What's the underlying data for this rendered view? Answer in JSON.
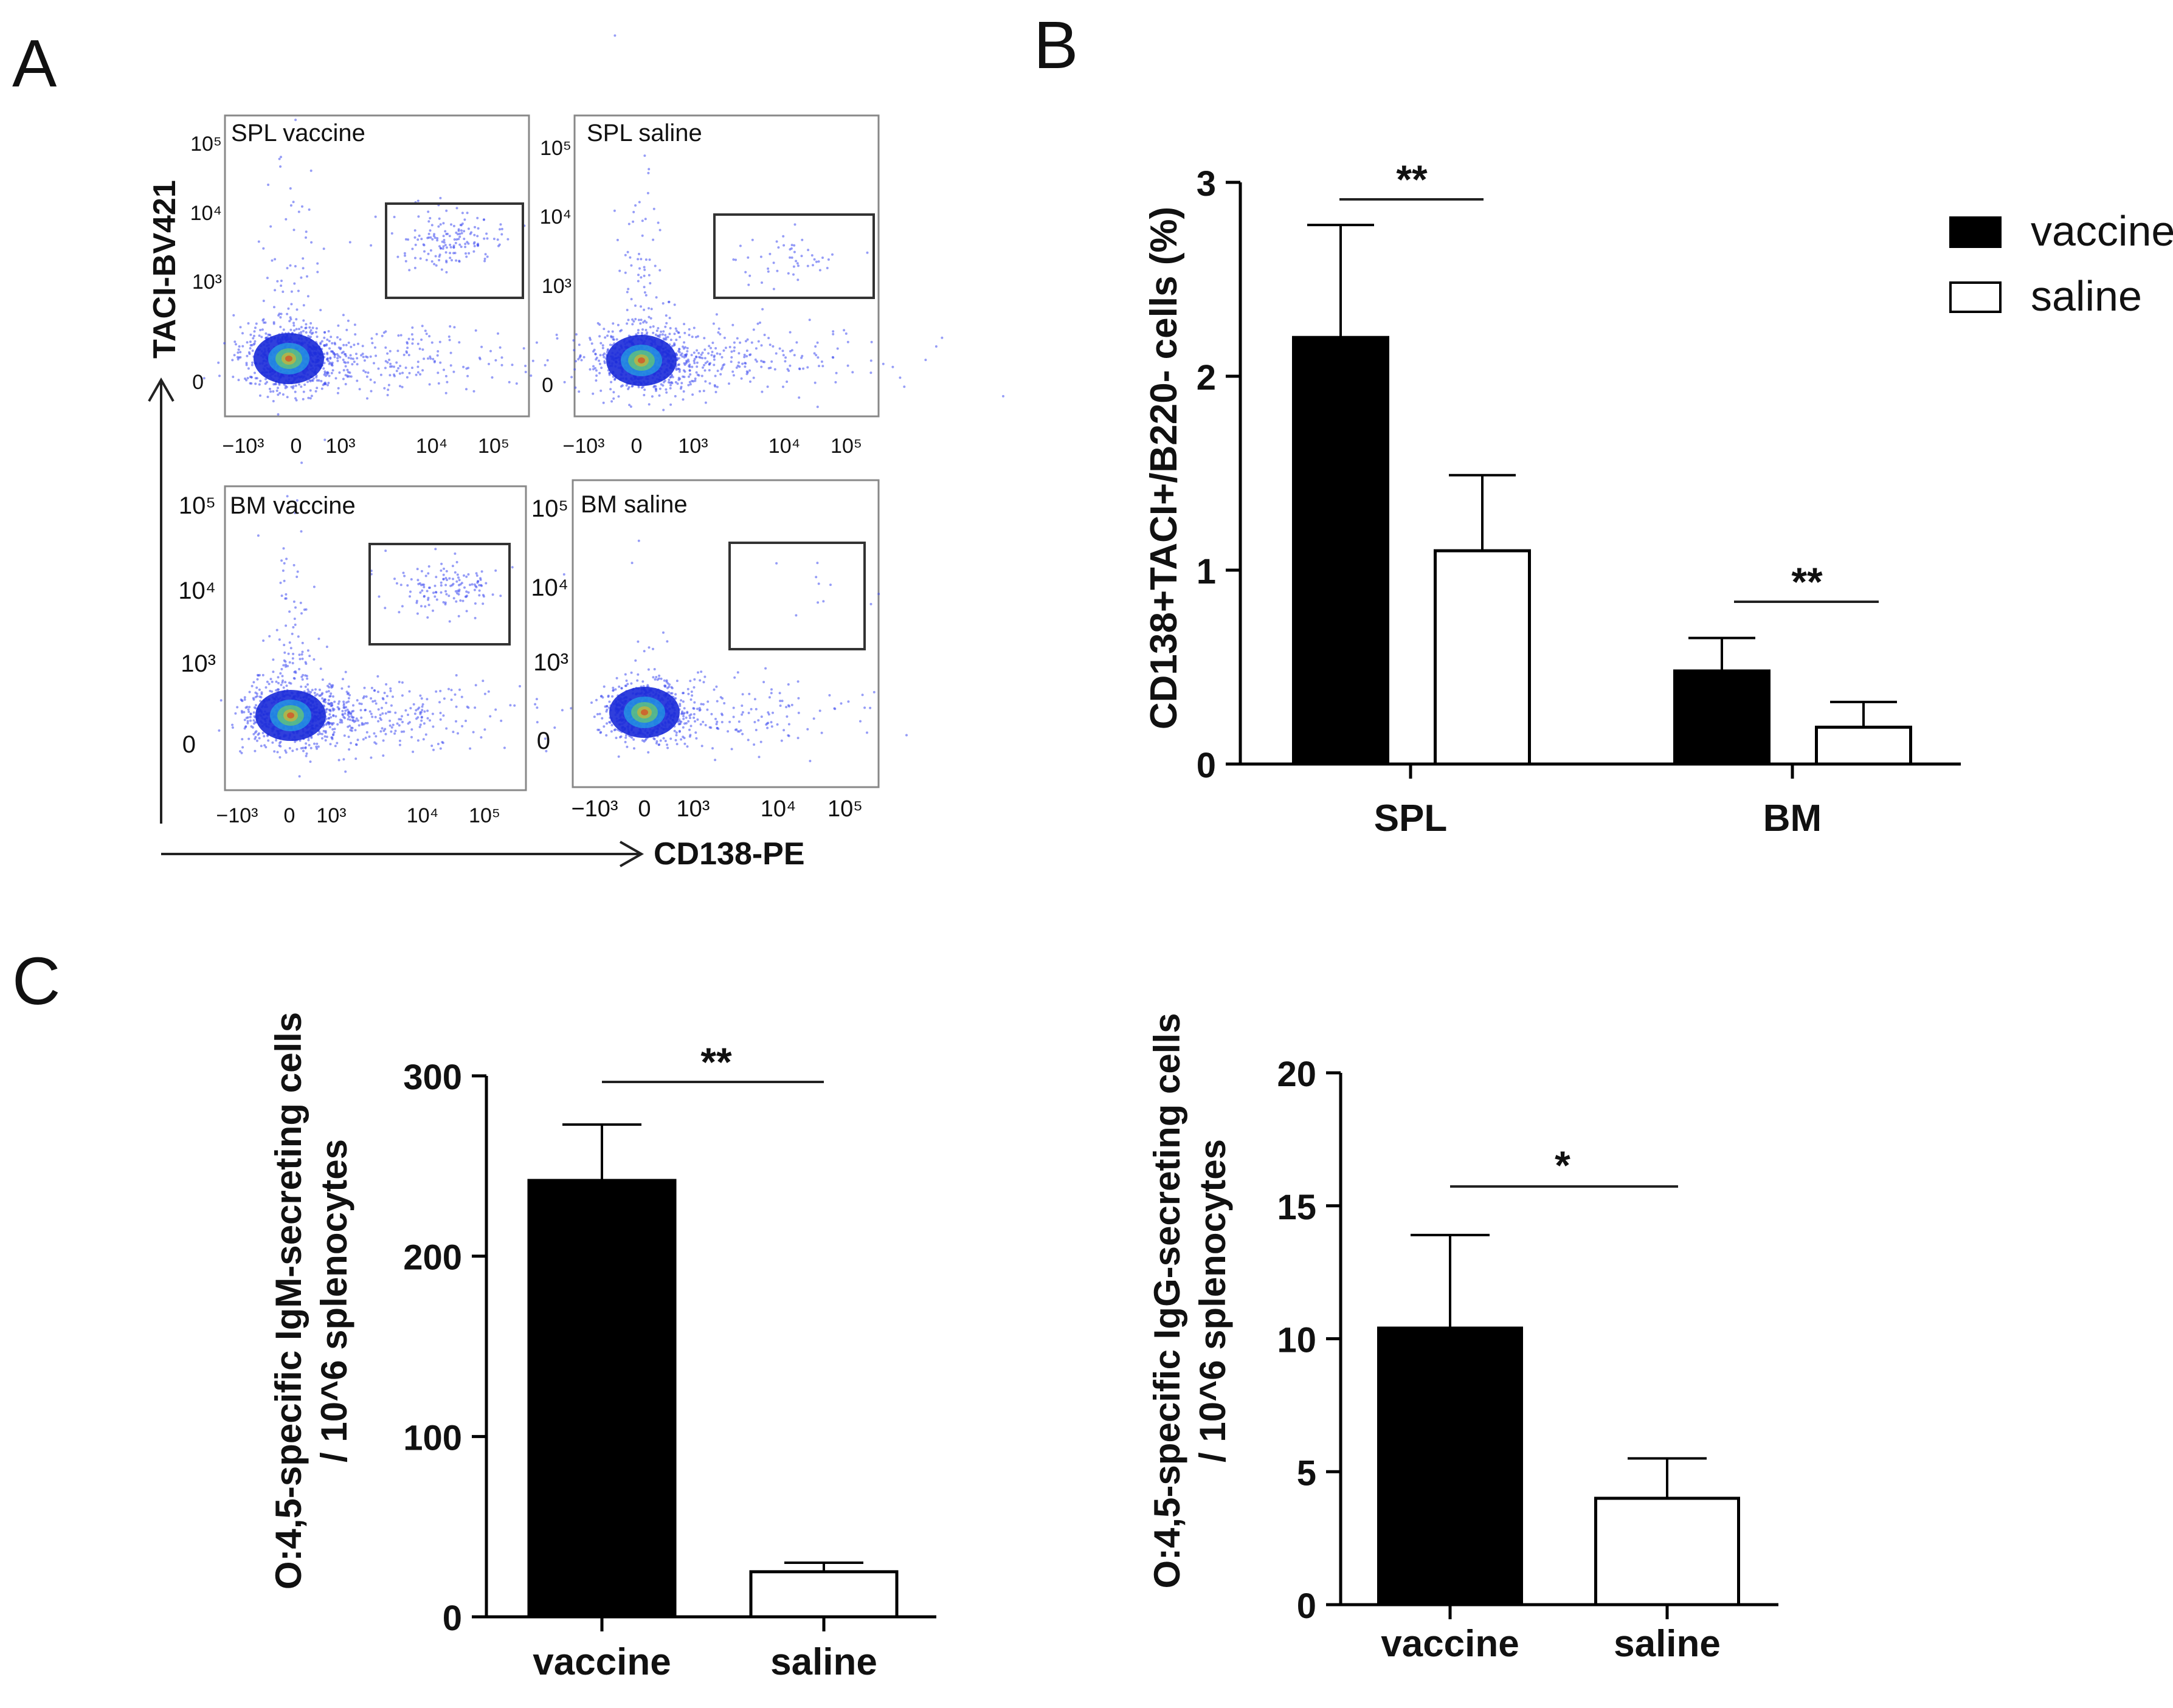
{
  "panels": {
    "a": "A",
    "b": "B",
    "c": "C"
  },
  "flow": {
    "y_axis_label": "TACI-BV421",
    "x_axis_label": "CD138-PE",
    "plots": [
      {
        "title": "SPL vaccine",
        "y_ticks": [
          "10⁵",
          "10⁴",
          "10³",
          "0"
        ],
        "x_ticks": [
          "−10³",
          "0",
          "10³",
          "10⁴",
          "10⁵"
        ]
      },
      {
        "title": "SPL saline",
        "y_ticks": [
          "10⁵",
          "10⁴",
          "10³",
          "0"
        ],
        "x_ticks": [
          "−10³",
          "0",
          "10³",
          "10⁴",
          "10⁵"
        ]
      },
      {
        "title": "BM vaccine",
        "y_ticks": [
          "10⁵",
          "10⁴",
          "10³",
          "0"
        ],
        "x_ticks": [
          "−10³",
          "0",
          "10³",
          "10⁴",
          "10⁵"
        ]
      },
      {
        "title": "BM saline",
        "y_ticks": [
          "10⁵",
          "10⁴",
          "10³",
          "0"
        ],
        "x_ticks": [
          "−10³",
          "0",
          "10³",
          "10⁴",
          "10⁵"
        ]
      }
    ]
  },
  "colors": {
    "vaccine": "#000000",
    "saline": "#ffffff",
    "dots": "#3f4df0"
  },
  "chart_data": [
    {
      "id": "B",
      "type": "bar",
      "categories": [
        "SPL",
        "BM"
      ],
      "series": [
        {
          "name": "vaccine",
          "values": [
            2.2,
            0.48
          ],
          "errors": [
            0.58,
            0.17
          ]
        },
        {
          "name": "saline",
          "values": [
            1.1,
            0.19
          ],
          "errors": [
            0.39,
            0.13
          ]
        }
      ],
      "ylabel": "CD138+TACI+/B220- cells (%)",
      "xlabel": "",
      "ylim": [
        0,
        3
      ],
      "yticks": [
        "0",
        "1",
        "2",
        "3"
      ],
      "significance": [
        "**",
        "**"
      ],
      "legend": {
        "position": "top-right",
        "entries": [
          "vaccine",
          "saline"
        ]
      }
    },
    {
      "id": "C-left",
      "type": "bar",
      "categories": [
        "vaccine",
        "saline"
      ],
      "values": [
        242,
        25
      ],
      "errors": [
        31,
        5
      ],
      "ylabel": [
        "O:4,5-specific IgM-secreting cells",
        "/ 10^6 splenocytes"
      ],
      "ylim": [
        0,
        300
      ],
      "yticks": [
        "0",
        "100",
        "200",
        "300"
      ],
      "significance": "**"
    },
    {
      "id": "C-right",
      "type": "bar",
      "categories": [
        "vaccine",
        "saline"
      ],
      "values": [
        10.4,
        4.0
      ],
      "errors": [
        3.5,
        1.5
      ],
      "ylabel": [
        "O:4,5-specific IgG-secreting cells",
        "/ 10^6 splenocytes"
      ],
      "ylim": [
        0,
        20
      ],
      "yticks": [
        "0",
        "5",
        "10",
        "15",
        "20"
      ],
      "significance": "*"
    }
  ]
}
